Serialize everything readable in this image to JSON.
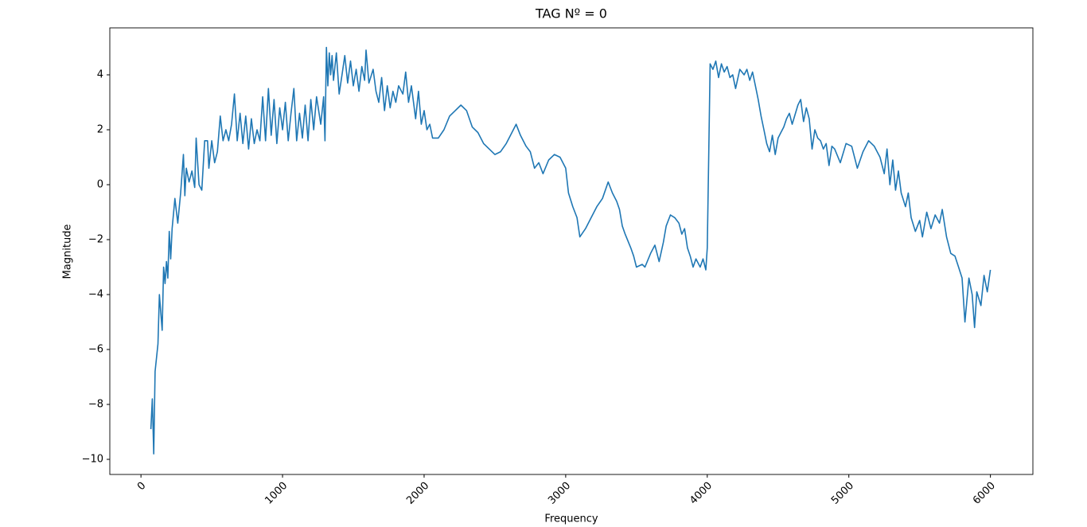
{
  "chart_data": {
    "type": "line",
    "title": "TAG Nº = 0",
    "x_label": "Frequency",
    "y_label": "Magnitude",
    "color": "#1f77b4",
    "x": [
      70,
      80,
      90,
      100,
      120,
      130,
      150,
      160,
      170,
      180,
      190,
      200,
      210,
      220,
      240,
      260,
      280,
      300,
      310,
      320,
      340,
      360,
      380,
      390,
      410,
      430,
      450,
      470,
      480,
      500,
      520,
      540,
      560,
      580,
      600,
      620,
      640,
      660,
      680,
      700,
      720,
      740,
      760,
      780,
      800,
      820,
      840,
      860,
      880,
      900,
      920,
      940,
      960,
      980,
      1000,
      1020,
      1040,
      1060,
      1080,
      1100,
      1120,
      1140,
      1160,
      1180,
      1200,
      1220,
      1240,
      1270,
      1290,
      1300,
      1310,
      1320,
      1330,
      1340,
      1350,
      1360,
      1380,
      1400,
      1420,
      1440,
      1460,
      1480,
      1500,
      1520,
      1540,
      1560,
      1580,
      1590,
      1610,
      1640,
      1660,
      1680,
      1700,
      1720,
      1740,
      1760,
      1780,
      1800,
      1820,
      1850,
      1870,
      1890,
      1910,
      1940,
      1960,
      1980,
      2000,
      2020,
      2040,
      2060,
      2100,
      2140,
      2180,
      2220,
      2260,
      2300,
      2340,
      2380,
      2420,
      2460,
      2500,
      2540,
      2580,
      2620,
      2650,
      2680,
      2720,
      2750,
      2780,
      2810,
      2840,
      2880,
      2920,
      2960,
      3000,
      3020,
      3050,
      3080,
      3100,
      3140,
      3180,
      3220,
      3260,
      3300,
      3330,
      3360,
      3380,
      3400,
      3420,
      3460,
      3480,
      3500,
      3540,
      3560,
      3600,
      3630,
      3660,
      3690,
      3710,
      3740,
      3770,
      3800,
      3820,
      3840,
      3860,
      3880,
      3900,
      3920,
      3950,
      3970,
      3990,
      4000,
      4010,
      4020,
      4040,
      4060,
      4080,
      4100,
      4120,
      4140,
      4160,
      4180,
      4200,
      4230,
      4260,
      4280,
      4300,
      4320,
      4340,
      4360,
      4380,
      4400,
      4420,
      4440,
      4460,
      4480,
      4500,
      4520,
      4540,
      4560,
      4580,
      4600,
      4640,
      4660,
      4680,
      4700,
      4720,
      4740,
      4760,
      4780,
      4800,
      4820,
      4840,
      4860,
      4880,
      4900,
      4940,
      4980,
      5020,
      5060,
      5100,
      5140,
      5180,
      5220,
      5250,
      5270,
      5290,
      5310,
      5330,
      5350,
      5370,
      5400,
      5420,
      5440,
      5470,
      5500,
      5520,
      5550,
      5580,
      5610,
      5640,
      5660,
      5690,
      5720,
      5750,
      5775,
      5800,
      5820,
      5848,
      5871,
      5888,
      5904,
      5933,
      5955,
      5978,
      6000
    ],
    "values": [
      -8.9,
      -7.8,
      -9.8,
      -6.8,
      -5.8,
      -4.0,
      -5.3,
      -3.0,
      -3.6,
      -2.8,
      -3.4,
      -1.7,
      -2.7,
      -1.6,
      -0.5,
      -1.4,
      -0.3,
      1.1,
      -0.4,
      0.6,
      0.1,
      0.5,
      -0.1,
      1.7,
      0.0,
      -0.2,
      1.6,
      1.6,
      0.6,
      1.6,
      0.8,
      1.2,
      2.5,
      1.6,
      2.0,
      1.6,
      2.2,
      3.3,
      1.6,
      2.6,
      1.5,
      2.5,
      1.3,
      2.4,
      1.5,
      2.0,
      1.6,
      3.2,
      1.6,
      3.5,
      1.8,
      3.1,
      1.5,
      2.8,
      2.0,
      3.0,
      1.6,
      2.6,
      3.5,
      1.6,
      2.6,
      1.7,
      2.9,
      1.6,
      3.1,
      2.0,
      3.2,
      2.2,
      3.2,
      1.6,
      5.0,
      3.6,
      4.8,
      4.0,
      4.7,
      3.8,
      4.8,
      3.3,
      4.0,
      4.7,
      3.7,
      4.5,
      3.6,
      4.2,
      3.4,
      4.3,
      3.8,
      4.9,
      3.7,
      4.2,
      3.4,
      3.0,
      3.9,
      2.7,
      3.6,
      2.8,
      3.4,
      3.0,
      3.6,
      3.3,
      4.1,
      3.0,
      3.6,
      2.4,
      3.4,
      2.2,
      2.7,
      2.0,
      2.2,
      1.7,
      1.7,
      2.0,
      2.5,
      2.7,
      2.9,
      2.7,
      2.1,
      1.9,
      1.5,
      1.3,
      1.1,
      1.2,
      1.5,
      1.9,
      2.2,
      1.8,
      1.4,
      1.2,
      0.6,
      0.8,
      0.4,
      0.9,
      1.1,
      1.0,
      0.6,
      -0.3,
      -0.8,
      -1.2,
      -1.9,
      -1.6,
      -1.2,
      -0.8,
      -0.5,
      0.1,
      -0.3,
      -0.6,
      -0.9,
      -1.5,
      -1.8,
      -2.3,
      -2.6,
      -3.0,
      -2.9,
      -3.0,
      -2.5,
      -2.2,
      -2.8,
      -2.1,
      -1.5,
      -1.1,
      -1.2,
      -1.4,
      -1.8,
      -1.6,
      -2.3,
      -2.6,
      -3.0,
      -2.7,
      -3.0,
      -2.7,
      -3.1,
      -2.3,
      1.0,
      4.4,
      4.2,
      4.5,
      3.9,
      4.4,
      4.1,
      4.3,
      3.9,
      4.0,
      3.5,
      4.2,
      4.0,
      4.2,
      3.8,
      4.1,
      3.6,
      3.1,
      2.5,
      2.0,
      1.5,
      1.2,
      1.8,
      1.1,
      1.7,
      1.9,
      2.1,
      2.4,
      2.6,
      2.2,
      2.9,
      3.1,
      2.3,
      2.8,
      2.4,
      1.3,
      2.0,
      1.7,
      1.6,
      1.3,
      1.5,
      0.7,
      1.4,
      1.3,
      0.8,
      1.5,
      1.4,
      0.6,
      1.2,
      1.6,
      1.4,
      1.0,
      0.4,
      1.3,
      0.0,
      0.9,
      -0.2,
      0.5,
      -0.3,
      -0.8,
      -0.3,
      -1.2,
      -1.7,
      -1.3,
      -1.9,
      -1.0,
      -1.6,
      -1.1,
      -1.4,
      -0.9,
      -1.9,
      -2.5,
      -2.6,
      -3.0,
      -3.4,
      -5.0,
      -3.4,
      -4.0,
      -5.2,
      -3.9,
      -4.4,
      -3.3,
      -3.9,
      -3.1
    ],
    "xlim": [
      -220,
      6300
    ],
    "ylim": [
      -10.55,
      5.71
    ],
    "xticks": [
      0,
      1000,
      2000,
      3000,
      4000,
      5000,
      6000
    ],
    "yticks": [
      {
        "value": -10,
        "label": "−10"
      },
      {
        "value": -8,
        "label": "−8"
      },
      {
        "value": -6,
        "label": "−6"
      },
      {
        "value": -4,
        "label": "−4"
      },
      {
        "value": -2,
        "label": "−2"
      },
      0,
      2,
      4
    ]
  }
}
